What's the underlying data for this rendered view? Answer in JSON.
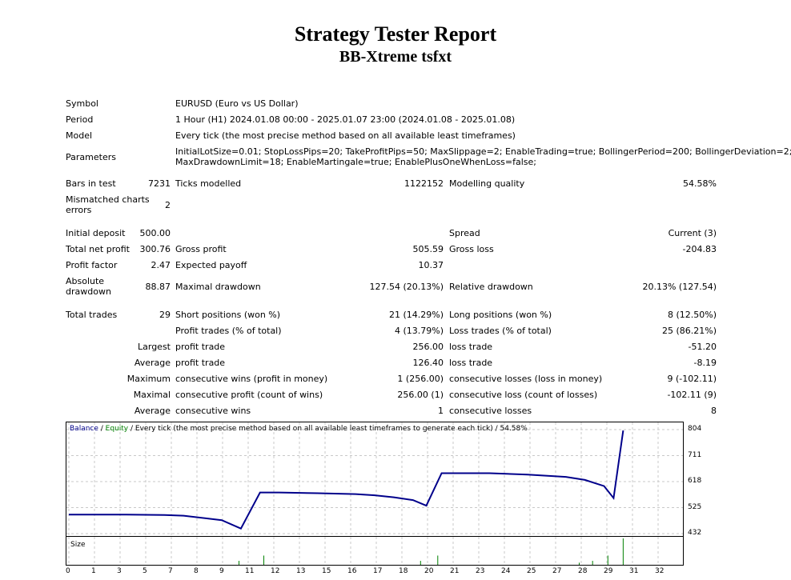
{
  "header": {
    "title": "Strategy Tester Report",
    "subtitle": "BB-Xtreme tsfxt"
  },
  "info": {
    "symbol_label": "Symbol",
    "symbol": "EURUSD (Euro vs US Dollar)",
    "period_label": "Period",
    "period": "1 Hour (H1) 2024.01.08 00:00 - 2025.01.07 23:00 (2024.01.08 - 2025.01.08)",
    "model_label": "Model",
    "model": "Every tick (the most precise method based on all available least timeframes)",
    "params_label": "Parameters",
    "params_line1": "InitialLotSize=0.01; StopLossPips=20; TakeProfitPips=50; MaxSlippage=2; EnableTrading=true; BollingerPeriod=200; BollingerDeviation=2;",
    "params_line2": "MaxDrawdownLimit=18; EnableMartingale=true; EnablePlusOneWhenLoss=false;"
  },
  "bars": {
    "bars_label": "Bars in test",
    "bars": "7231",
    "ticks_label": "Ticks modelled",
    "ticks": "1122152",
    "quality_label": "Modelling quality",
    "quality": "54.58%",
    "mismatch_label_1": "Mismatched charts",
    "mismatch_label_2": "errors",
    "mismatch": "2"
  },
  "results": {
    "deposit_label": "Initial deposit",
    "deposit": "500.00",
    "spread_label": "Spread",
    "spread": "Current (3)",
    "netprofit_label": "Total net profit",
    "netprofit": "300.76",
    "grossprofit_label": "Gross profit",
    "grossprofit": "505.59",
    "grossloss_label": "Gross loss",
    "grossloss": "-204.83",
    "pf_label": "Profit factor",
    "pf": "2.47",
    "ep_label": "Expected payoff",
    "ep": "10.37",
    "absdd_label_1": "Absolute",
    "absdd_label_2": "drawdown",
    "absdd": "88.87",
    "maxdd_label": "Maximal drawdown",
    "maxdd": "127.54 (20.13%)",
    "reldd_label": "Relative drawdown",
    "reldd": "20.13% (127.54)"
  },
  "trades": {
    "total_label": "Total trades",
    "total": "29",
    "short_label": "Short positions (won %)",
    "short": "21 (14.29%)",
    "long_label": "Long positions (won %)",
    "long": "8 (12.50%)",
    "pt_label": "Profit trades (% of total)",
    "pt": "4 (13.79%)",
    "lt_label": "Loss trades (% of total)",
    "lt": "25 (86.21%)",
    "largest_label": "Largest",
    "largest_pt_label": "profit trade",
    "largest_pt": "256.00",
    "largest_lt_label": "loss trade",
    "largest_lt": "-51.20",
    "average_label": "Average",
    "average_pt_label": "profit trade",
    "average_pt": "126.40",
    "average_lt_label": "loss trade",
    "average_lt": "-8.19",
    "maximum_label": "Maximum",
    "max_cw_label": "consecutive wins (profit in money)",
    "max_cw": "1 (256.00)",
    "max_cl_label": "consecutive losses (loss in money)",
    "max_cl": "9 (-102.11)",
    "maximal_label": "Maximal",
    "mx_cp_label": "consecutive profit (count of wins)",
    "mx_cp": "256.00 (1)",
    "mx_cl_label": "consecutive loss (count of losses)",
    "mx_cl": "-102.11 (9)",
    "average2_label": "Average",
    "avg_cw_label": "consecutive wins",
    "avg_cw": "1",
    "avg_cl_label": "consecutive losses",
    "avg_cl": "8"
  },
  "chart_legend": {
    "balance": "Balance",
    "sep1": " / ",
    "equity": "Equity",
    "rest": " / Every tick (the most precise method based on all available least timeframes to generate each tick) / 54.58%"
  },
  "size_label": "Size",
  "colors": {
    "balance": "#00008b",
    "equity": "#008000",
    "grid": "#c8c8c8"
  },
  "chart_data": {
    "type": "line",
    "series": [
      {
        "name": "Balance",
        "x": [
          0,
          3,
          5,
          6,
          8,
          9,
          10,
          11,
          13,
          15,
          16,
          17,
          18,
          18.7,
          19.5,
          20,
          22,
          24,
          26,
          27,
          28,
          28.5,
          29
        ],
        "y": [
          500.0,
          500.0,
          498.5,
          496.0,
          480.0,
          450.0,
          579.0,
          579.0,
          576.5,
          573.5,
          569.0,
          562.0,
          552.0,
          532.0,
          648.0,
          648.0,
          648.0,
          643.0,
          635.0,
          624.0,
          602.0,
          559.0,
          800.76
        ]
      }
    ],
    "size_bars": {
      "x": [
        8.9,
        10.2,
        18.4,
        19.3,
        26.7,
        27.4,
        28.2,
        29.0
      ],
      "y": [
        0.15,
        0.35,
        0.15,
        0.35,
        0.08,
        0.15,
        0.35,
        1.0
      ]
    },
    "y_ticks": [
      "804",
      "711",
      "618",
      "525",
      "432"
    ],
    "x_ticks": [
      "0",
      "1",
      "3",
      "5",
      "7",
      "8",
      "9",
      "11",
      "12",
      "13",
      "15",
      "16",
      "17",
      "18",
      "20",
      "21",
      "23",
      "24",
      "25",
      "27",
      "28",
      "29",
      "31",
      "32"
    ],
    "ylim": [
      432,
      804
    ],
    "xlim": [
      0,
      32
    ]
  }
}
